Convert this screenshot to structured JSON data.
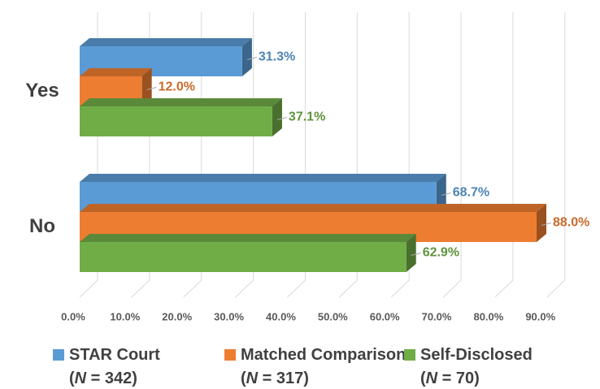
{
  "chart_data": {
    "type": "bar3d_horizontal",
    "categories": [
      "Yes",
      "No"
    ],
    "series": [
      {
        "name": "STAR Court (N = 342)",
        "color": "#5b9bd5",
        "values": [
          31.3,
          68.7
        ],
        "value_labels": [
          "31.3%",
          "68.7%"
        ]
      },
      {
        "name": "Matched Comparison (N = 317)",
        "color": "#ed7d31",
        "values": [
          12.0,
          88.0
        ],
        "value_labels": [
          "12.0%",
          "88.0%"
        ]
      },
      {
        "name": "Self-Disclosed (N = 70)",
        "color": "#70ad47",
        "values": [
          37.1,
          62.9
        ],
        "value_labels": [
          "37.1%",
          "62.9%"
        ]
      }
    ],
    "xlim": [
      0,
      90
    ],
    "xticks": [
      {
        "value": 0,
        "label": "0.0%"
      },
      {
        "value": 10,
        "label": "10.0%"
      },
      {
        "value": 20,
        "label": "20.0%"
      },
      {
        "value": 30,
        "label": "30.0%"
      },
      {
        "value": 40,
        "label": "40.0%"
      },
      {
        "value": 50,
        "label": "50.0%"
      },
      {
        "value": 60,
        "label": "60.0%"
      },
      {
        "value": 70,
        "label": "70.0%"
      },
      {
        "value": 80,
        "label": "80.0%"
      },
      {
        "value": 90,
        "label": "90.0%"
      }
    ],
    "grid": true,
    "legend": "bottom"
  }
}
